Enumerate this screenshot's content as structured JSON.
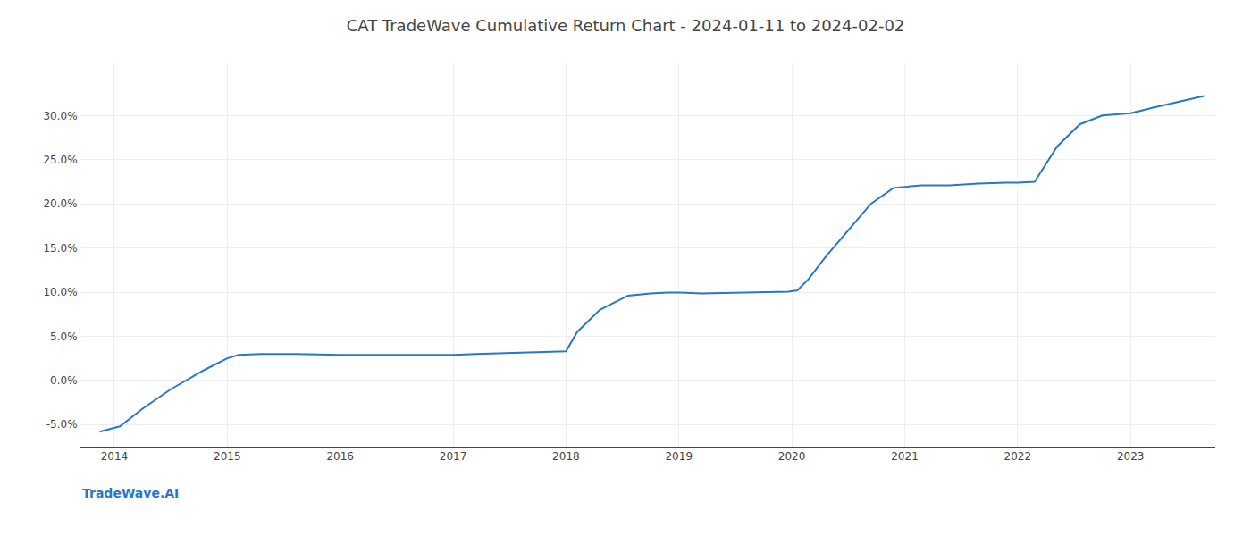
{
  "chart_data": {
    "type": "line",
    "title": "CAT TradeWave Cumulative Return Chart - 2024-01-11 to 2024-02-02",
    "annotations": [
      {
        "text": "TradeWave.AI"
      }
    ],
    "color": "#2878c8",
    "x": [
      2013.87,
      2014.05,
      2014.25,
      2014.5,
      2014.8,
      2015.0,
      2015.1,
      2015.3,
      2015.6,
      2015.9,
      2016.0,
      2016.3,
      2016.6,
      2016.9,
      2017.0,
      2017.2,
      2017.5,
      2017.8,
      2018.0,
      2018.1,
      2018.3,
      2018.55,
      2018.75,
      2018.9,
      2019.0,
      2019.2,
      2019.5,
      2019.8,
      2019.97,
      2020.05,
      2020.15,
      2020.3,
      2020.5,
      2020.7,
      2020.9,
      2021.0,
      2021.15,
      2021.4,
      2021.65,
      2021.9,
      2022.0,
      2022.15,
      2022.35,
      2022.55,
      2022.75,
      2022.9,
      2023.0,
      2023.2,
      2023.45,
      2023.65
    ],
    "values": [
      -5.8,
      -5.2,
      -3.2,
      -1.0,
      1.2,
      2.5,
      2.9,
      3.0,
      3.0,
      2.9,
      2.9,
      2.9,
      2.9,
      2.9,
      2.9,
      3.0,
      3.1,
      3.2,
      3.3,
      5.5,
      8.0,
      9.6,
      9.85,
      9.95,
      9.95,
      9.85,
      9.9,
      9.95,
      10.05,
      10.2,
      11.5,
      14.0,
      17.0,
      20.0,
      21.8,
      21.9,
      22.1,
      22.1,
      22.3,
      22.4,
      22.4,
      22.5,
      26.5,
      29.0,
      30.0,
      30.15,
      30.25,
      30.9,
      31.6,
      32.2
    ],
    "xlim": [
      2013.7,
      2023.75
    ],
    "xticks": [
      2014,
      2015,
      2016,
      2017,
      2018,
      2019,
      2020,
      2021,
      2022,
      2023
    ],
    "ylim": [
      -7.5,
      36.0
    ],
    "yticks": [
      {
        "value": -5.0,
        "label": "-5.0%"
      },
      {
        "value": 0.0,
        "label": "0.0%"
      },
      {
        "value": 5.0,
        "label": "5.0%"
      },
      {
        "value": 10.0,
        "label": "10.0%"
      },
      {
        "value": 15.0,
        "label": "15.0%"
      },
      {
        "value": 20.0,
        "label": "20.0%"
      },
      {
        "value": 25.0,
        "label": "25.0%"
      },
      {
        "value": 30.0,
        "label": "30.0%"
      }
    ],
    "grid": true
  }
}
